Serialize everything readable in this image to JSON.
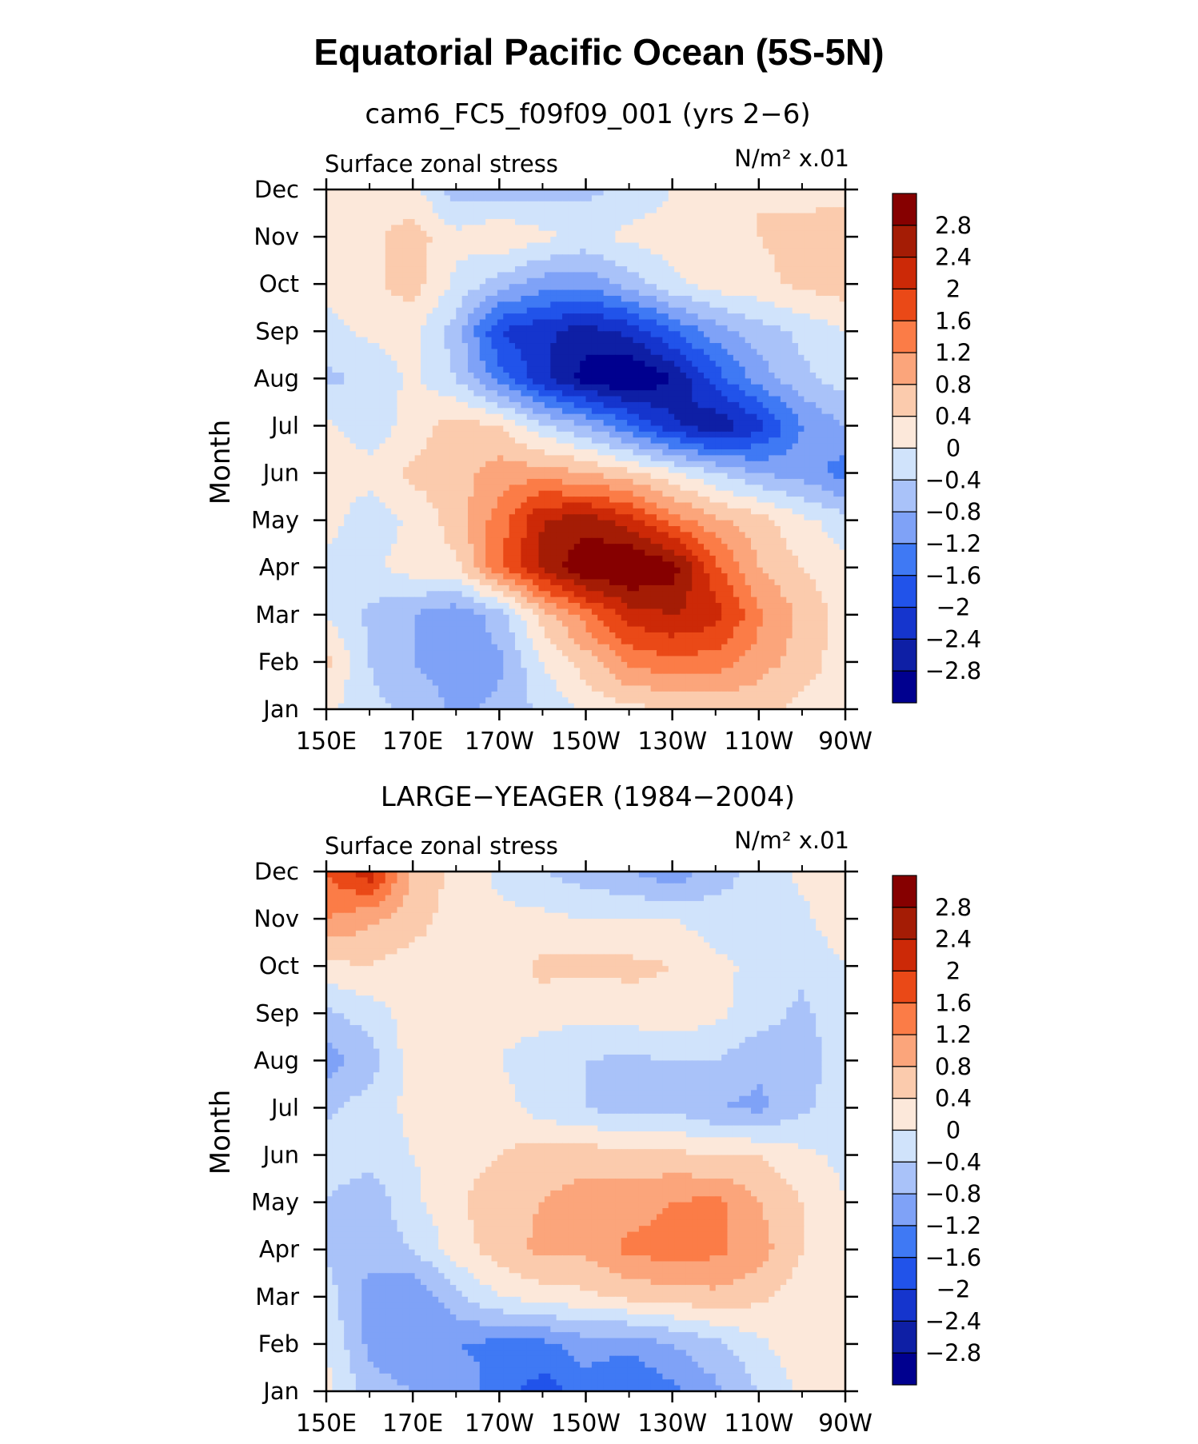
{
  "main_title": "Equatorial Pacific Ocean (5S-5N)",
  "colorbar_colors": [
    "#00008f",
    "#0e1fa5",
    "#1535cd",
    "#2153ea",
    "#3f79f4",
    "#7fa2f7",
    "#a9c2f9",
    "#d0e3fb",
    "#fce8da",
    "#fbcbad",
    "#fba57b",
    "#fb7c47",
    "#ea4917",
    "#cc2907",
    "#a41c05",
    "#860000"
  ],
  "chart_data": [
    {
      "type": "heatmap",
      "title": "cam6_FC5_f09f09_001 (yrs 2−6)",
      "variable_label": "Surface zonal stress",
      "units_label": "N/m² x.01",
      "xlabel": "",
      "ylabel": "Month",
      "x_ticklabels": [
        "150E",
        "170E",
        "170W",
        "150W",
        "130W",
        "110W",
        "90W"
      ],
      "y_ticklabels": [
        "Jan",
        "Feb",
        "Mar",
        "Apr",
        "May",
        "Jun",
        "Jul",
        "Aug",
        "Sep",
        "Oct",
        "Nov",
        "Dec"
      ],
      "xlim": [
        "150E",
        "90W"
      ],
      "colorbar_levels": [
        "2.8",
        "2.4",
        "2",
        "1.6",
        "1.2",
        "0.8",
        "0.4",
        "0",
        "−0.4",
        "−0.8",
        "−1.2",
        "−1.6",
        "−2",
        "−2.4",
        "−2.8"
      ],
      "x_values": [
        "150E",
        "160E",
        "170E",
        "180",
        "170W",
        "160W",
        "150W",
        "140W",
        "130W",
        "120W",
        "110W",
        "100W",
        "90W"
      ],
      "months": [
        "Jan",
        "Feb",
        "Mar",
        "Apr",
        "May",
        "Jun",
        "Jul",
        "Aug",
        "Sep",
        "Oct",
        "Nov",
        "Dec"
      ],
      "values": [
        [
          0.1,
          -0.3,
          -0.5,
          -0.9,
          -0.7,
          -0.3,
          0.1,
          0.3,
          0.4,
          0.5,
          0.5,
          0.3,
          0.1
        ],
        [
          0.5,
          -0.4,
          -0.8,
          -1.0,
          -0.9,
          0.0,
          0.6,
          1.3,
          1.5,
          1.4,
          1.0,
          0.6,
          0.2
        ],
        [
          0.0,
          -0.5,
          -0.8,
          -1.1,
          -0.6,
          0.6,
          1.4,
          2.2,
          2.4,
          2.2,
          1.3,
          0.7,
          0.2
        ],
        [
          -0.2,
          -0.1,
          0.2,
          0.3,
          1.5,
          2.5,
          3.2,
          3.3,
          3.0,
          1.7,
          0.8,
          0.4,
          0.1
        ],
        [
          0.2,
          -0.3,
          0.1,
          0.6,
          1.4,
          2.4,
          2.6,
          2.2,
          1.4,
          0.9,
          0.6,
          0.1,
          -0.2
        ],
        [
          0.2,
          0.2,
          0.5,
          0.6,
          1.0,
          1.0,
          0.8,
          0.5,
          0.1,
          -0.4,
          -0.8,
          -1.0,
          -1.4
        ],
        [
          0.1,
          -0.3,
          0.2,
          0.6,
          0.4,
          -0.3,
          -0.8,
          -1.5,
          -2.3,
          -2.7,
          -2.2,
          -1.2,
          -0.8
        ],
        [
          -0.5,
          -0.3,
          0.1,
          -0.4,
          -1.4,
          -2.3,
          -3.0,
          -3.3,
          -2.8,
          -1.8,
          -1.0,
          -0.5,
          -0.2
        ],
        [
          -0.2,
          0.1,
          0.1,
          -0.6,
          -2.0,
          -2.3,
          -2.6,
          -2.3,
          -1.6,
          -1.0,
          -0.6,
          -0.3,
          0.0
        ],
        [
          0.2,
          0.3,
          0.6,
          -0.1,
          -0.6,
          -1.0,
          -1.1,
          -0.6,
          -0.1,
          0.2,
          0.3,
          0.5,
          0.6
        ],
        [
          0.3,
          0.3,
          0.6,
          0.1,
          0.4,
          0.1,
          -0.1,
          0.1,
          0.2,
          0.4,
          0.4,
          0.5,
          0.6
        ],
        [
          0.2,
          0.1,
          0.1,
          -0.6,
          -0.7,
          -0.6,
          -0.5,
          -0.3,
          0.0,
          0.2,
          0.4,
          0.3,
          0.3
        ]
      ]
    },
    {
      "type": "heatmap",
      "title": "LARGE−YEAGER (1984−2004)",
      "variable_label": "Surface zonal stress",
      "units_label": "N/m² x.01",
      "xlabel": "",
      "ylabel": "Month",
      "x_ticklabels": [
        "150E",
        "170E",
        "170W",
        "150W",
        "130W",
        "110W",
        "90W"
      ],
      "y_ticklabels": [
        "Jan",
        "Feb",
        "Mar",
        "Apr",
        "May",
        "Jun",
        "Jul",
        "Aug",
        "Sep",
        "Oct",
        "Nov",
        "Dec"
      ],
      "xlim": [
        "150E",
        "90W"
      ],
      "colorbar_levels": [
        "2.8",
        "2.4",
        "2",
        "1.6",
        "1.2",
        "0.8",
        "0.4",
        "0",
        "−0.4",
        "−0.8",
        "−1.2",
        "−1.6",
        "−2",
        "−2.4",
        "−2.8"
      ],
      "x_values": [
        "150E",
        "160E",
        "170E",
        "180",
        "170W",
        "160W",
        "150W",
        "140W",
        "130W",
        "120W",
        "110W",
        "100W",
        "90W"
      ],
      "months": [
        "Jan",
        "Feb",
        "Mar",
        "Apr",
        "May",
        "Jun",
        "Jul",
        "Aug",
        "Sep",
        "Oct",
        "Nov",
        "Dec"
      ],
      "values": [
        [
          0.1,
          -0.6,
          -0.8,
          -0.9,
          -1.4,
          -1.8,
          -1.4,
          -1.6,
          -1.3,
          -0.9,
          -0.4,
          0.1,
          0.2
        ],
        [
          0.0,
          -0.9,
          -1.2,
          -1.2,
          -1.3,
          -1.3,
          -1.0,
          -1.1,
          -0.8,
          -0.5,
          -0.1,
          0.3,
          0.2
        ],
        [
          -0.2,
          -1.0,
          -1.2,
          -0.5,
          0.0,
          0.2,
          0.3,
          0.5,
          0.6,
          0.7,
          0.5,
          0.2,
          0.1
        ],
        [
          -0.5,
          -0.6,
          -0.4,
          0.2,
          0.6,
          0.9,
          0.9,
          1.3,
          1.4,
          1.3,
          1.0,
          0.4,
          0.1
        ],
        [
          -0.4,
          -0.7,
          -0.1,
          0.3,
          0.7,
          0.8,
          1.0,
          1.0,
          1.2,
          1.3,
          0.8,
          0.4,
          0.0
        ],
        [
          -0.2,
          -0.2,
          0.0,
          0.2,
          0.4,
          0.6,
          0.6,
          0.6,
          0.5,
          0.4,
          0.4,
          0.1,
          -0.1
        ],
        [
          -0.5,
          -0.2,
          0.1,
          0.1,
          0.2,
          -0.2,
          -0.4,
          -0.6,
          -0.5,
          -0.8,
          -0.9,
          -0.5,
          -0.1
        ],
        [
          -1.0,
          -0.6,
          0.2,
          0.3,
          0.0,
          -0.3,
          -0.4,
          -0.5,
          -0.4,
          -0.4,
          -0.7,
          -0.6,
          -0.2
        ],
        [
          -0.5,
          -0.2,
          0.2,
          0.2,
          0.2,
          0.2,
          0.1,
          0.2,
          0.3,
          0.1,
          -0.2,
          -0.5,
          -0.1
        ],
        [
          0.3,
          0.4,
          0.2,
          0.2,
          0.2,
          0.5,
          0.5,
          0.5,
          0.4,
          0.1,
          -0.1,
          -0.3,
          0.0
        ],
        [
          1.2,
          0.9,
          0.6,
          0.2,
          0.1,
          0.1,
          0.0,
          0.0,
          0.0,
          -0.2,
          -0.4,
          -0.1,
          0.3
        ],
        [
          1.6,
          2.3,
          0.7,
          0.3,
          -0.1,
          -0.4,
          -0.6,
          -0.8,
          -1.1,
          -0.6,
          -0.2,
          0.1,
          0.2
        ]
      ]
    }
  ]
}
